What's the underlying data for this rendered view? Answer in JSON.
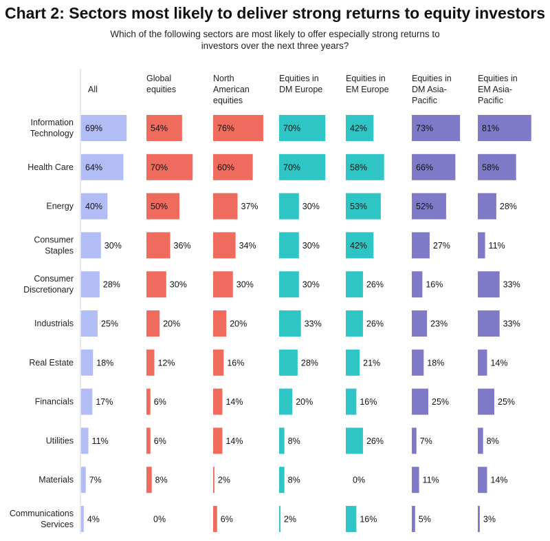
{
  "chart_data": {
    "type": "bar",
    "title": "Chart 2: Sectors most likely to deliver strong returns to equity investors",
    "subtitle": "Which of the following sectors are most likely to offer especially strong returns to investors over the next three years?",
    "categories": [
      "Information Technology",
      "Health Care",
      "Energy",
      "Consumer Staples",
      "Consumer Discretionary",
      "Industrials",
      "Real Estate",
      "Financials",
      "Utilities",
      "Materials",
      "Communications Services"
    ],
    "category_lines": [
      [
        "Information",
        "Technology"
      ],
      [
        "Health Care"
      ],
      [
        "Energy"
      ],
      [
        "Consumer",
        "Staples"
      ],
      [
        "Consumer",
        "Discretionary"
      ],
      [
        "Industrials"
      ],
      [
        "Real Estate"
      ],
      [
        "Financials"
      ],
      [
        "Utilities"
      ],
      [
        "Materials"
      ],
      [
        "Communications",
        "Services"
      ]
    ],
    "unit": "%",
    "series": [
      {
        "name": "All",
        "name_lines": [
          "All"
        ],
        "color": "#b3bdf5",
        "values": [
          69,
          64,
          40,
          30,
          28,
          25,
          18,
          17,
          11,
          7,
          4
        ]
      },
      {
        "name": "Global equities",
        "name_lines": [
          "Global",
          "equities"
        ],
        "color": "#ee6b5e",
        "values": [
          54,
          70,
          50,
          36,
          30,
          20,
          12,
          6,
          6,
          8,
          0
        ]
      },
      {
        "name": "North American equities",
        "name_lines": [
          "North",
          "American",
          "equities"
        ],
        "color": "#ee6b5e",
        "values": [
          76,
          60,
          37,
          34,
          30,
          20,
          16,
          14,
          14,
          2,
          6
        ]
      },
      {
        "name": "Equities in DM Europe",
        "name_lines": [
          "Equities in",
          "DM Europe"
        ],
        "color": "#2fc5c5",
        "values": [
          70,
          70,
          30,
          30,
          30,
          33,
          28,
          20,
          8,
          8,
          2
        ]
      },
      {
        "name": "Equities in EM Europe",
        "name_lines": [
          "Equities in",
          "EM Europe"
        ],
        "color": "#2fc5c5",
        "values": [
          42,
          58,
          53,
          42,
          26,
          26,
          21,
          16,
          26,
          0,
          16
        ]
      },
      {
        "name": "Equities in DM Asia-Pacific",
        "name_lines": [
          "Equities in",
          "DM Asia-",
          "Pacific"
        ],
        "color": "#7f7ac8",
        "values": [
          73,
          66,
          52,
          27,
          16,
          23,
          18,
          25,
          7,
          11,
          5
        ]
      },
      {
        "name": "Equities in EM Asia-Pacific",
        "name_lines": [
          "Equities in",
          "EM Asia-",
          "Pacific"
        ],
        "color": "#7f7ac8",
        "values": [
          81,
          58,
          28,
          11,
          33,
          33,
          14,
          25,
          8,
          14,
          3
        ]
      }
    ]
  }
}
